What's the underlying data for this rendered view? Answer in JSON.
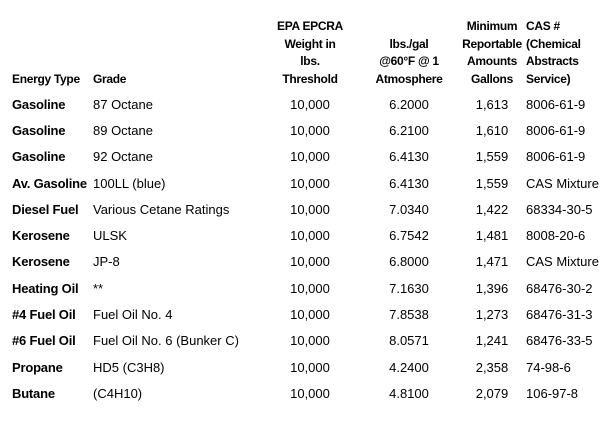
{
  "page": {
    "background_color": "#ffffff",
    "text_color": "#000000"
  },
  "table": {
    "columns": [
      {
        "key": "energy_type",
        "label": "Energy Type"
      },
      {
        "key": "grade",
        "label": "Grade"
      },
      {
        "key": "threshold",
        "label": "EPA EPCRA\nWeight in\nlbs.\nThreshold"
      },
      {
        "key": "lbs_per_gal",
        "label": "lbs./gal\n@60°F @ 1\nAtmosphere"
      },
      {
        "key": "min_gallons",
        "label": "Minimum\nReportable\nAmounts\nGallons"
      },
      {
        "key": "cas",
        "label": "CAS #\n(Chemical\nAbstracts\nService)"
      }
    ],
    "rows": [
      {
        "energy_type": "Gasoline",
        "grade": "87 Octane",
        "threshold": "10,000",
        "lbs_per_gal": "6.2000",
        "min_gallons": "1,613",
        "cas": "8006-61-9"
      },
      {
        "energy_type": "Gasoline",
        "grade": "89 Octane",
        "threshold": "10,000",
        "lbs_per_gal": "6.2100",
        "min_gallons": "1,610",
        "cas": "8006-61-9"
      },
      {
        "energy_type": "Gasoline",
        "grade": "92 Octane",
        "threshold": "10,000",
        "lbs_per_gal": "6.4130",
        "min_gallons": "1,559",
        "cas": "8006-61-9"
      },
      {
        "energy_type": "Av. Gasoline",
        "grade": "100LL (blue)",
        "threshold": "10,000",
        "lbs_per_gal": "6.4130",
        "min_gallons": "1,559",
        "cas": "CAS Mixture"
      },
      {
        "energy_type": "Diesel Fuel",
        "grade": "Various Cetane Ratings",
        "threshold": "10,000",
        "lbs_per_gal": "7.0340",
        "min_gallons": "1,422",
        "cas": "68334-30-5"
      },
      {
        "energy_type": "Kerosene",
        "grade": "ULSK",
        "threshold": "10,000",
        "lbs_per_gal": "6.7542",
        "min_gallons": "1,481",
        "cas": "8008-20-6"
      },
      {
        "energy_type": "Kerosene",
        "grade": "JP-8",
        "threshold": "10,000",
        "lbs_per_gal": "6.8000",
        "min_gallons": "1,471",
        "cas": "CAS Mixture"
      },
      {
        "energy_type": "Heating Oil",
        "grade": "**",
        "threshold": "10,000",
        "lbs_per_gal": "7.1630",
        "min_gallons": "1,396",
        "cas": "68476-30-2"
      },
      {
        "energy_type": "#4 Fuel Oil",
        "grade": "Fuel Oil No. 4",
        "threshold": "10,000",
        "lbs_per_gal": "7.8538",
        "min_gallons": "1,273",
        "cas": "68476-31-3"
      },
      {
        "energy_type": "#6 Fuel Oil",
        "grade": "Fuel Oil No. 6 (Bunker C)",
        "threshold": "10,000",
        "lbs_per_gal": "8.0571",
        "min_gallons": "1,241",
        "cas": "68476-33-5"
      },
      {
        "energy_type": "Propane",
        "grade": "HD5 (C3H8)",
        "threshold": "10,000",
        "lbs_per_gal": "4.2400",
        "min_gallons": "2,358",
        "cas": "74-98-6"
      },
      {
        "energy_type": "Butane",
        "grade": "(C4H10)",
        "threshold": "10,000",
        "lbs_per_gal": "4.8100",
        "min_gallons": "2,079",
        "cas": "106-97-8"
      }
    ]
  }
}
